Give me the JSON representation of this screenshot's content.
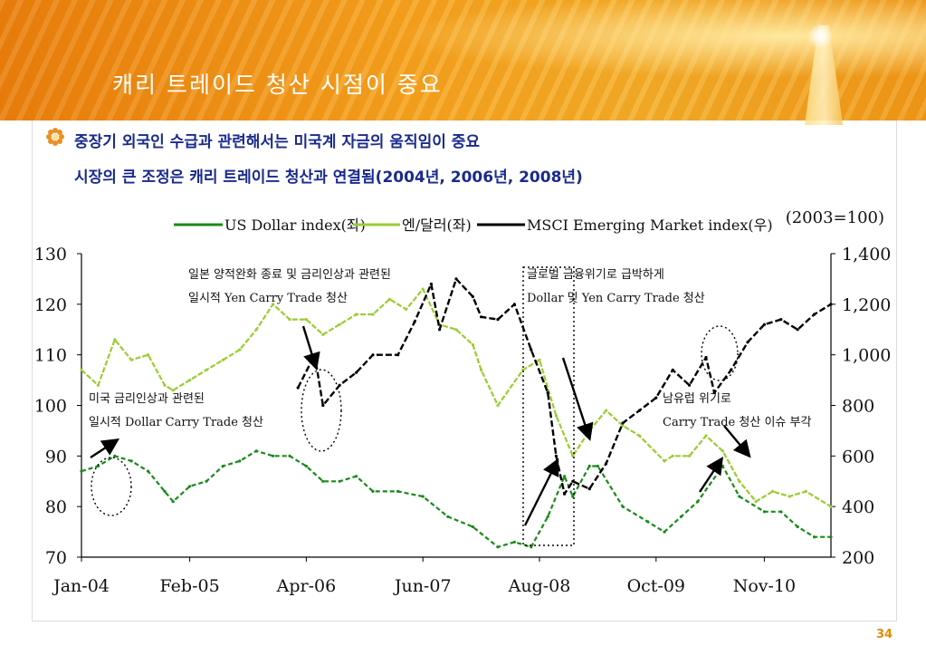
{
  "slide": {
    "title": "캐리 트레이드 청산 시점이 중요",
    "bullet_line1": "중장기 외국인 수급과 관련해서는 미국계 자금의 움직임이 중요",
    "bullet_line2": "시장의 큰 조정은 캐리 트레이드 청산과 연결됨(2004년, 2006년, 2008년)",
    "page_number": "34"
  },
  "chart_data": {
    "type": "line",
    "base_note": "(2003=100)",
    "x_ticks": [
      "Jan-04",
      "Feb-05",
      "Apr-06",
      "Jun-07",
      "Aug-08",
      "Oct-09",
      "Nov-10"
    ],
    "x_range": [
      "2004-01",
      "2011-07"
    ],
    "y_left": {
      "ticks": [
        "70",
        "80",
        "90",
        "100",
        "110",
        "120",
        "130"
      ],
      "range": [
        70,
        130
      ]
    },
    "y_right": {
      "ticks": [
        "200",
        "400",
        "600",
        "800",
        "1,000",
        "1,200",
        "1,400"
      ],
      "range": [
        200,
        1400
      ]
    },
    "series": [
      {
        "name": "US Dollar index(좌)",
        "axis": "left",
        "color": "#1a8a1a",
        "points": [
          [
            "2004-01",
            87
          ],
          [
            "2004-03",
            88
          ],
          [
            "2004-05",
            90
          ],
          [
            "2004-07",
            89
          ],
          [
            "2004-09",
            87
          ],
          [
            "2004-11",
            83
          ],
          [
            "2004-12",
            81
          ],
          [
            "2005-02",
            84
          ],
          [
            "2005-04",
            85
          ],
          [
            "2005-06",
            88
          ],
          [
            "2005-08",
            89
          ],
          [
            "2005-10",
            91
          ],
          [
            "2005-12",
            90
          ],
          [
            "2006-02",
            90
          ],
          [
            "2006-04",
            88
          ],
          [
            "2006-06",
            85
          ],
          [
            "2006-08",
            85
          ],
          [
            "2006-10",
            86
          ],
          [
            "2006-12",
            83
          ],
          [
            "2007-03",
            83
          ],
          [
            "2007-06",
            82
          ],
          [
            "2007-09",
            78
          ],
          [
            "2007-12",
            76
          ],
          [
            "2008-03",
            72
          ],
          [
            "2008-05",
            73
          ],
          [
            "2008-07",
            72
          ],
          [
            "2008-09",
            78
          ],
          [
            "2008-11",
            86
          ],
          [
            "2008-12",
            82
          ],
          [
            "2009-02",
            88
          ],
          [
            "2009-03",
            88
          ],
          [
            "2009-06",
            80
          ],
          [
            "2009-09",
            77
          ],
          [
            "2009-11",
            75
          ],
          [
            "2010-01",
            78
          ],
          [
            "2010-03",
            81
          ],
          [
            "2010-06",
            88
          ],
          [
            "2010-08",
            82
          ],
          [
            "2010-11",
            79
          ],
          [
            "2011-01",
            79
          ],
          [
            "2011-03",
            76
          ],
          [
            "2011-05",
            74
          ],
          [
            "2011-07",
            74
          ]
        ]
      },
      {
        "name": "엔/달러(좌)",
        "axis": "left",
        "color": "#9acd32",
        "points": [
          [
            "2004-01",
            107
          ],
          [
            "2004-03",
            104
          ],
          [
            "2004-05",
            113
          ],
          [
            "2004-07",
            109
          ],
          [
            "2004-09",
            110
          ],
          [
            "2004-11",
            104
          ],
          [
            "2004-12",
            103
          ],
          [
            "2005-02",
            105
          ],
          [
            "2005-04",
            107
          ],
          [
            "2005-06",
            109
          ],
          [
            "2005-08",
            111
          ],
          [
            "2005-10",
            115
          ],
          [
            "2005-12",
            120
          ],
          [
            "2006-02",
            117
          ],
          [
            "2006-04",
            117
          ],
          [
            "2006-06",
            114
          ],
          [
            "2006-08",
            116
          ],
          [
            "2006-10",
            118
          ],
          [
            "2006-12",
            118
          ],
          [
            "2007-02",
            121
          ],
          [
            "2007-04",
            119
          ],
          [
            "2007-06",
            123
          ],
          [
            "2007-08",
            116
          ],
          [
            "2007-10",
            115
          ],
          [
            "2007-12",
            112
          ],
          [
            "2008-01",
            107
          ],
          [
            "2008-03",
            100
          ],
          [
            "2008-06",
            107
          ],
          [
            "2008-08",
            109
          ],
          [
            "2008-10",
            98
          ],
          [
            "2008-12",
            90
          ],
          [
            "2009-02",
            95
          ],
          [
            "2009-04",
            99
          ],
          [
            "2009-06",
            96
          ],
          [
            "2009-08",
            94
          ],
          [
            "2009-11",
            89
          ],
          [
            "2009-12",
            90
          ],
          [
            "2010-02",
            90
          ],
          [
            "2010-04",
            94
          ],
          [
            "2010-06",
            91
          ],
          [
            "2010-08",
            85
          ],
          [
            "2010-10",
            81
          ],
          [
            "2010-12",
            83
          ],
          [
            "2011-02",
            82
          ],
          [
            "2011-04",
            83
          ],
          [
            "2011-07",
            80
          ]
        ]
      },
      {
        "name": "MSCI Emerging Market index(우)",
        "axis": "right",
        "color": "#000000",
        "points": [
          [
            "2006-03",
            870
          ],
          [
            "2006-05",
            1000
          ],
          [
            "2006-06",
            800
          ],
          [
            "2006-08",
            880
          ],
          [
            "2006-10",
            930
          ],
          [
            "2006-12",
            1000
          ],
          [
            "2007-03",
            1000
          ],
          [
            "2007-05",
            1130
          ],
          [
            "2007-07",
            1280
          ],
          [
            "2007-08",
            1100
          ],
          [
            "2007-10",
            1300
          ],
          [
            "2007-12",
            1230
          ],
          [
            "2008-01",
            1150
          ],
          [
            "2008-03",
            1140
          ],
          [
            "2008-05",
            1200
          ],
          [
            "2008-07",
            1020
          ],
          [
            "2008-09",
            850
          ],
          [
            "2008-10",
            600
          ],
          [
            "2008-11",
            450
          ],
          [
            "2008-12",
            500
          ],
          [
            "2009-02",
            470
          ],
          [
            "2009-04",
            570
          ],
          [
            "2009-06",
            730
          ],
          [
            "2009-08",
            780
          ],
          [
            "2009-10",
            830
          ],
          [
            "2009-12",
            940
          ],
          [
            "2010-02",
            880
          ],
          [
            "2010-04",
            990
          ],
          [
            "2010-05",
            850
          ],
          [
            "2010-07",
            940
          ],
          [
            "2010-09",
            1050
          ],
          [
            "2010-11",
            1120
          ],
          [
            "2011-01",
            1140
          ],
          [
            "2011-03",
            1100
          ],
          [
            "2011-05",
            1160
          ],
          [
            "2011-07",
            1200
          ]
        ]
      }
    ]
  },
  "annotations": [
    {
      "id": "dollar-carry-2004",
      "lines": [
        "미국 금리인상과 관련된",
        "일시적 Dollar Carry Trade 청산"
      ]
    },
    {
      "id": "yen-carry-2006",
      "lines": [
        "일본 양적완화 종료 및 금리인상과 관련된",
        "일시적 Yen Carry Trade 청산"
      ]
    },
    {
      "id": "crisis-2008",
      "lines": [
        "글로벌 금융위기로 급박하게",
        "Dollar 및 Yen Carry Trade 청산"
      ]
    },
    {
      "id": "europe-2010",
      "lines": [
        "남유럽 위기로",
        "Carry Trade 청산 이슈 부각"
      ]
    }
  ]
}
